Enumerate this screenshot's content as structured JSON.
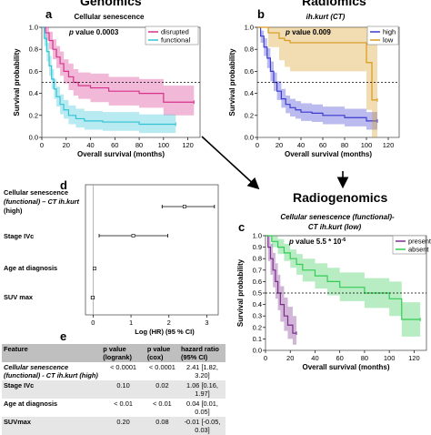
{
  "panels": {
    "a": {
      "letter": "a",
      "header": "Genomics",
      "subtitle": "Cellular senescence",
      "pvalue": "p value 0.0003",
      "legend": [
        "disrupted",
        "functional"
      ],
      "xlabel": "Overall survival (months)",
      "ylabel": "Survival probability",
      "xticks": [
        "0",
        "20",
        "40",
        "60",
        "80",
        "100",
        "120"
      ],
      "yticks": [
        "0.0",
        "0.2",
        "0.4",
        "0.6",
        "0.8",
        "1.0"
      ]
    },
    "b": {
      "letter": "b",
      "header": "Radiomics",
      "subtitle": "ih.kurt (CT)",
      "pvalue": "p value 0.009",
      "legend": [
        "high",
        "low"
      ],
      "xlabel": "Overall survival (months)",
      "ylabel": "Survival probability",
      "xticks": [
        "0",
        "20",
        "40",
        "60",
        "80",
        "100",
        "120"
      ],
      "yticks": [
        "0.0",
        "0.2",
        "0.4",
        "0.6",
        "0.8",
        "1.0"
      ]
    },
    "c": {
      "letter": "c",
      "header": "Radiogenomics",
      "subtitle1": "Cellular senescence (functional)-",
      "subtitle2": "CT ih.kurt (low)",
      "pvalue": "p value 5.5 * 10",
      "pvalue_exp": "-6",
      "legend": [
        "present",
        "absent"
      ],
      "xlabel": "Overall survival (months)",
      "ylabel": "Survival probability",
      "xticks": [
        "0",
        "20",
        "40",
        "60",
        "80",
        "100",
        "120"
      ],
      "yticks": [
        "0.0",
        "0.1",
        "0.2",
        "0.3",
        "0.4",
        "0.5",
        "0.6",
        "0.7",
        "0.8",
        "0.9",
        "1.0"
      ]
    },
    "d": {
      "letter": "d",
      "labels": [
        "Cellular senescence",
        "(functional) – CT ih.kurt",
        "(high)",
        "Stage IVc",
        "Age at diagnosis",
        "SUV max"
      ],
      "xlabel": "Log (HR) (95 % CI)",
      "xticks": [
        "0",
        "1",
        "2",
        "3"
      ]
    },
    "e": {
      "letter": "e",
      "headers": [
        "Feature",
        "p value (logrank)",
        "p value (cox)",
        "hazard ratio (95% CI)"
      ],
      "rows": [
        [
          "Cellular senescence (functional) - CT ih.kurt (high)",
          "< 0.0001",
          "< 0.0001",
          "2.41 [1.82, 3.20]"
        ],
        [
          "Stage IVc",
          "0.10",
          "0.02",
          "1.06 [0.16, 1.97]"
        ],
        [
          "Age at diagnosis",
          "< 0.01",
          "< 0.01",
          "0.04 [0.01, 0.05]"
        ],
        [
          "SUVmax",
          "0.20",
          "0.08",
          "-0.01 [-0.05, 0.03]"
        ]
      ]
    }
  },
  "colors": {
    "disrupted": "#d6338c",
    "functional": "#33c4d6",
    "high": "#3b3bd1",
    "low": "#d99a1f",
    "present": "#7b2d8e",
    "absent": "#33cc55"
  },
  "chart_data": [
    {
      "type": "line",
      "title": "Cellular senescence",
      "xlabel": "Overall survival (months)",
      "ylabel": "Survival probability",
      "xlim": [
        0,
        130
      ],
      "ylim": [
        0,
        1
      ],
      "reference_line_y": 0.5,
      "series": [
        {
          "name": "disrupted",
          "x": [
            0,
            3,
            6,
            9,
            12,
            15,
            18,
            22,
            26,
            30,
            40,
            55,
            80,
            96,
            100,
            110,
            125
          ],
          "y": [
            1.0,
            0.95,
            0.88,
            0.8,
            0.73,
            0.67,
            0.6,
            0.55,
            0.5,
            0.47,
            0.45,
            0.42,
            0.4,
            0.4,
            0.32,
            0.32,
            0.32
          ],
          "ci_low": [
            1.0,
            0.88,
            0.8,
            0.71,
            0.63,
            0.56,
            0.49,
            0.43,
            0.38,
            0.35,
            0.32,
            0.29,
            0.27,
            0.27,
            0.2,
            0.2,
            0.2
          ],
          "ci_high": [
            1.0,
            1.0,
            0.96,
            0.89,
            0.83,
            0.78,
            0.71,
            0.67,
            0.62,
            0.59,
            0.58,
            0.55,
            0.53,
            0.53,
            0.47,
            0.47,
            0.47
          ]
        },
        {
          "name": "functional",
          "x": [
            0,
            2,
            4,
            6,
            8,
            10,
            12,
            15,
            18,
            22,
            28,
            35,
            50,
            70,
            80,
            100,
            110
          ],
          "y": [
            1.0,
            0.9,
            0.78,
            0.65,
            0.53,
            0.44,
            0.37,
            0.3,
            0.25,
            0.2,
            0.17,
            0.15,
            0.14,
            0.14,
            0.12,
            0.12,
            0.12
          ],
          "ci_low": [
            1.0,
            0.83,
            0.69,
            0.56,
            0.44,
            0.35,
            0.28,
            0.21,
            0.17,
            0.12,
            0.09,
            0.07,
            0.06,
            0.06,
            0.04,
            0.04,
            0.04
          ],
          "ci_high": [
            1.0,
            0.96,
            0.86,
            0.74,
            0.62,
            0.53,
            0.46,
            0.39,
            0.34,
            0.29,
            0.26,
            0.24,
            0.23,
            0.23,
            0.21,
            0.21,
            0.21
          ]
        }
      ]
    },
    {
      "type": "line",
      "title": "ih.kurt (CT)",
      "xlabel": "Overall survival (months)",
      "ylabel": "Survival probability",
      "xlim": [
        0,
        130
      ],
      "ylim": [
        0,
        1
      ],
      "reference_line_y": 0.5,
      "series": [
        {
          "name": "high",
          "x": [
            0,
            3,
            6,
            9,
            12,
            15,
            18,
            22,
            26,
            30,
            35,
            40,
            50,
            60,
            80,
            100,
            110
          ],
          "y": [
            1.0,
            0.92,
            0.82,
            0.72,
            0.6,
            0.5,
            0.42,
            0.35,
            0.3,
            0.27,
            0.25,
            0.23,
            0.22,
            0.2,
            0.18,
            0.15,
            0.15
          ],
          "ci_low": [
            1.0,
            0.86,
            0.74,
            0.63,
            0.51,
            0.42,
            0.34,
            0.27,
            0.22,
            0.19,
            0.17,
            0.15,
            0.14,
            0.12,
            0.1,
            0.07,
            0.07
          ],
          "ci_high": [
            1.0,
            0.97,
            0.9,
            0.81,
            0.69,
            0.59,
            0.51,
            0.44,
            0.38,
            0.35,
            0.33,
            0.31,
            0.3,
            0.28,
            0.26,
            0.23,
            0.23
          ]
        },
        {
          "name": "low",
          "x": [
            0,
            10,
            20,
            25,
            30,
            40,
            60,
            90,
            100,
            105,
            110
          ],
          "y": [
            1.0,
            0.95,
            0.9,
            0.88,
            0.86,
            0.86,
            0.86,
            0.86,
            0.68,
            0.34,
            0.34
          ],
          "ci_low": [
            1.0,
            0.82,
            0.7,
            0.64,
            0.6,
            0.6,
            0.6,
            0.6,
            0.25,
            0.0,
            0.0
          ],
          "ci_high": [
            1.0,
            1.0,
            1.0,
            1.0,
            1.0,
            1.0,
            1.0,
            1.0,
            1.0,
            1.0,
            1.0
          ]
        }
      ]
    },
    {
      "type": "line",
      "title": "Cellular senescence (functional)- CT ih.kurt (low)",
      "xlabel": "Overall survival (months)",
      "ylabel": "Survival probability",
      "xlim": [
        0,
        130
      ],
      "ylim": [
        0,
        1
      ],
      "reference_line_y": 0.5,
      "series": [
        {
          "name": "present",
          "x": [
            0,
            2,
            4,
            6,
            8,
            10,
            12,
            15,
            18,
            22,
            25
          ],
          "y": [
            1.0,
            0.9,
            0.8,
            0.7,
            0.6,
            0.5,
            0.4,
            0.3,
            0.22,
            0.15,
            0.15
          ],
          "ci_low": [
            1.0,
            0.78,
            0.66,
            0.55,
            0.45,
            0.35,
            0.25,
            0.17,
            0.1,
            0.05,
            0.05
          ],
          "ci_high": [
            1.0,
            1.0,
            0.93,
            0.85,
            0.76,
            0.66,
            0.56,
            0.46,
            0.38,
            0.3,
            0.3
          ]
        },
        {
          "name": "absent",
          "x": [
            0,
            5,
            10,
            15,
            20,
            25,
            30,
            40,
            50,
            60,
            80,
            100,
            110,
            125
          ],
          "y": [
            1.0,
            0.95,
            0.9,
            0.85,
            0.8,
            0.75,
            0.7,
            0.65,
            0.6,
            0.55,
            0.5,
            0.45,
            0.27,
            0.27
          ],
          "ci_low": [
            1.0,
            0.9,
            0.84,
            0.78,
            0.72,
            0.66,
            0.6,
            0.54,
            0.48,
            0.43,
            0.37,
            0.3,
            0.12,
            0.12
          ],
          "ci_high": [
            1.0,
            1.0,
            0.97,
            0.93,
            0.88,
            0.84,
            0.8,
            0.76,
            0.72,
            0.68,
            0.63,
            0.6,
            0.42,
            0.42
          ]
        }
      ]
    },
    {
      "type": "scatter",
      "title": "",
      "xlabel": "Log (HR) (95 % CI)",
      "xlim": [
        -0.2,
        3.3
      ],
      "reference_line_x": 0,
      "categories": [
        "Cellular senescence (functional) – CT ih.kurt (high)",
        "Stage IVc",
        "Age at diagnosis",
        "SUV max"
      ],
      "values": [
        2.41,
        1.06,
        0.04,
        -0.01
      ],
      "ci_low": [
        1.82,
        0.16,
        0.01,
        -0.05
      ],
      "ci_high": [
        3.2,
        1.97,
        0.05,
        0.03
      ]
    }
  ]
}
